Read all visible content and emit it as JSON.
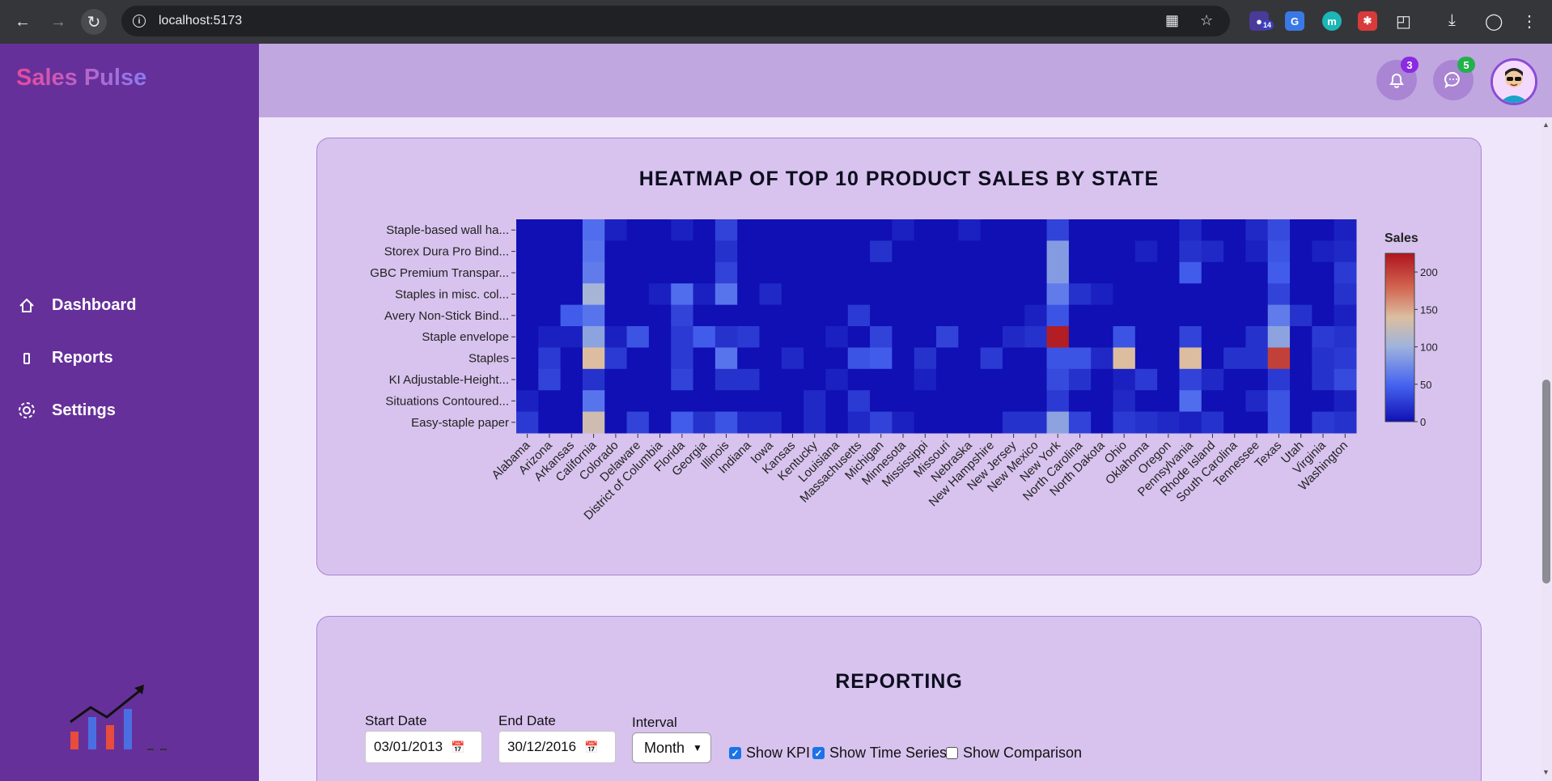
{
  "browser": {
    "url": "localhost:5173",
    "extension_badge": "14",
    "extension_m_label": "m"
  },
  "sidebar": {
    "logo": "Sales Pulse",
    "items": [
      {
        "label": "Dashboard",
        "icon": "home-icon"
      },
      {
        "label": "Reports",
        "icon": "report-icon"
      },
      {
        "label": "Settings",
        "icon": "gear-icon"
      }
    ]
  },
  "header": {
    "notifications_count": "3",
    "messages_count": "5"
  },
  "colors": {
    "sidebar": "#66309a",
    "header": "#c1a7e0",
    "card": "#d8c3ee",
    "notif_badge": "#8a2be2",
    "msg_badge": "#22b14c"
  },
  "heatmap_card": {
    "title": "HEATMAP OF TOP 10 PRODUCT SALES BY STATE"
  },
  "chart_data": {
    "type": "heatmap",
    "title": "HEATMAP OF TOP 10 PRODUCT SALES BY STATE",
    "colorbar_title": "Sales",
    "colorbar_ticks": [
      0,
      50,
      100,
      150,
      200
    ],
    "zlim": [
      0,
      225
    ],
    "rows": [
      "Staple-based wall ha...",
      "Storex Dura Pro Bind...",
      "GBC Premium Transpar...",
      "Staples in misc. col...",
      "Avery Non-Stick Bind...",
      "Staple envelope",
      "Staples",
      "KI Adjustable-Height...",
      "Situations Contoured...",
      "Easy-staple paper"
    ],
    "columns": [
      "Alabama",
      "Arizona",
      "Arkansas",
      "California",
      "Colorado",
      "Delaware",
      "District of Columbia",
      "Florida",
      "Georgia",
      "Illinois",
      "Indiana",
      "Iowa",
      "Kansas",
      "Kentucky",
      "Louisiana",
      "Massachusetts",
      "Michigan",
      "Minnesota",
      "Mississippi",
      "Missouri",
      "Nebraska",
      "New Hampshire",
      "New Jersey",
      "New Mexico",
      "New York",
      "North Carolina",
      "North Dakota",
      "Ohio",
      "Oklahoma",
      "Oregon",
      "Pennsylvania",
      "Rhode Island",
      "South Carolina",
      "Tennessee",
      "Texas",
      "Utah",
      "Virginia",
      "Washington"
    ],
    "values": [
      [
        0,
        0,
        0,
        55,
        10,
        0,
        0,
        10,
        0,
        30,
        0,
        0,
        0,
        0,
        0,
        0,
        0,
        10,
        0,
        0,
        10,
        0,
        0,
        0,
        30,
        0,
        0,
        0,
        0,
        0,
        15,
        0,
        0,
        15,
        35,
        0,
        0,
        10
      ],
      [
        0,
        0,
        0,
        60,
        0,
        0,
        0,
        0,
        0,
        20,
        0,
        0,
        0,
        0,
        0,
        0,
        20,
        0,
        0,
        0,
        0,
        0,
        0,
        0,
        85,
        0,
        0,
        0,
        10,
        0,
        20,
        15,
        0,
        10,
        40,
        0,
        10,
        15
      ],
      [
        0,
        0,
        0,
        65,
        0,
        0,
        0,
        0,
        0,
        30,
        0,
        0,
        0,
        0,
        0,
        0,
        0,
        0,
        0,
        0,
        0,
        0,
        0,
        0,
        85,
        0,
        0,
        0,
        0,
        0,
        45,
        0,
        0,
        0,
        45,
        0,
        0,
        25
      ],
      [
        0,
        0,
        0,
        105,
        0,
        0,
        10,
        55,
        10,
        60,
        0,
        15,
        0,
        0,
        0,
        0,
        0,
        0,
        0,
        0,
        0,
        0,
        0,
        0,
        65,
        20,
        10,
        0,
        0,
        0,
        0,
        0,
        0,
        0,
        30,
        0,
        0,
        20
      ],
      [
        0,
        0,
        45,
        60,
        0,
        0,
        0,
        30,
        0,
        0,
        0,
        0,
        0,
        0,
        0,
        25,
        0,
        0,
        0,
        0,
        0,
        0,
        0,
        10,
        40,
        0,
        0,
        0,
        0,
        0,
        0,
        0,
        0,
        0,
        65,
        20,
        0,
        10
      ],
      [
        0,
        10,
        10,
        90,
        10,
        40,
        0,
        25,
        45,
        20,
        25,
        0,
        0,
        0,
        10,
        0,
        30,
        0,
        0,
        30,
        0,
        0,
        15,
        20,
        220,
        0,
        0,
        40,
        0,
        0,
        30,
        0,
        0,
        20,
        90,
        0,
        25,
        20
      ],
      [
        0,
        25,
        0,
        140,
        25,
        0,
        0,
        25,
        0,
        60,
        0,
        0,
        15,
        0,
        0,
        40,
        45,
        0,
        20,
        0,
        0,
        25,
        0,
        0,
        40,
        40,
        15,
        140,
        0,
        0,
        140,
        0,
        20,
        20,
        200,
        0,
        20,
        25
      ],
      [
        0,
        30,
        0,
        20,
        0,
        0,
        0,
        30,
        0,
        20,
        20,
        0,
        0,
        0,
        10,
        0,
        0,
        0,
        10,
        0,
        0,
        0,
        0,
        0,
        35,
        20,
        0,
        10,
        25,
        0,
        30,
        15,
        0,
        0,
        25,
        0,
        20,
        35
      ],
      [
        10,
        0,
        0,
        60,
        0,
        0,
        0,
        0,
        0,
        0,
        0,
        0,
        0,
        15,
        0,
        25,
        0,
        0,
        0,
        0,
        0,
        0,
        0,
        0,
        25,
        0,
        0,
        15,
        0,
        0,
        55,
        0,
        0,
        15,
        40,
        0,
        0,
        10
      ],
      [
        25,
        0,
        0,
        130,
        0,
        30,
        0,
        45,
        20,
        40,
        15,
        15,
        0,
        15,
        0,
        15,
        30,
        10,
        0,
        0,
        0,
        0,
        20,
        20,
        90,
        30,
        0,
        25,
        20,
        15,
        10,
        20,
        0,
        0,
        40,
        0,
        25,
        20
      ]
    ]
  },
  "reporting_card": {
    "title": "REPORTING",
    "start_date_label": "Start Date",
    "start_date_value": "03/01/2013",
    "end_date_label": "End Date",
    "end_date_value": "30/12/2016",
    "interval_label": "Interval",
    "interval_value": "Month",
    "checkboxes": [
      {
        "label": "Show KPI",
        "checked": true
      },
      {
        "label": "Show Time Series",
        "checked": true
      },
      {
        "label": "Show Comparison",
        "checked": false
      }
    ]
  }
}
